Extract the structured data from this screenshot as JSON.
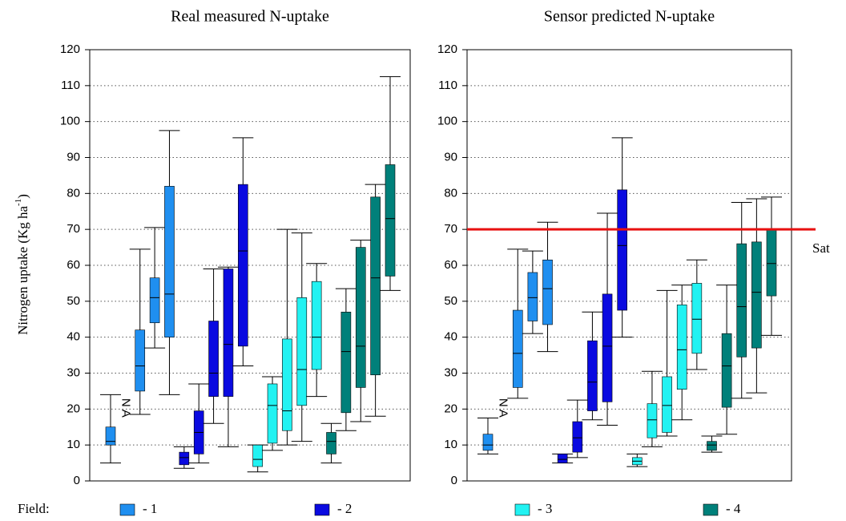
{
  "chart_data": [
    {
      "type": "box",
      "title": "Real measured N-uptake",
      "ylabel": "Nitrogen uptake (Kg ha",
      "ylabel_superscript": "-1",
      "ylabel_end": ")",
      "ylim": [
        0,
        120
      ],
      "yticks": [
        0,
        10,
        20,
        30,
        40,
        50,
        60,
        70,
        80,
        90,
        100,
        110,
        120
      ],
      "grid": true,
      "na_label": "NA",
      "series": [
        {
          "name": "- 1",
          "color": "#1f8ff0",
          "values": [
            [
              5,
              10,
              11,
              15,
              24
            ],
            null,
            [
              18.5,
              25,
              32,
              42,
              64.5
            ],
            [
              37,
              44,
              51,
              56.5,
              70.5
            ],
            [
              24,
              40,
              52,
              82,
              97.5
            ]
          ]
        },
        {
          "name": "- 2",
          "color": "#0a0ae0",
          "values": [
            [
              3.5,
              4.5,
              6.5,
              8,
              9.5
            ],
            [
              5,
              7.5,
              13.5,
              19.5,
              27
            ],
            [
              16,
              23.5,
              30,
              44.5,
              59
            ],
            [
              9.5,
              23.5,
              38,
              59,
              59.5
            ],
            [
              32,
              37.5,
              64,
              82.5,
              95.5
            ]
          ]
        },
        {
          "name": "- 3",
          "color": "#22f2f2",
          "values": [
            [
              2.5,
              4,
              6,
              10,
              10
            ],
            [
              8.5,
              10.5,
              21,
              27,
              29
            ],
            [
              10,
              14,
              19.5,
              39.5,
              70
            ],
            [
              11,
              21,
              31,
              51,
              69
            ],
            [
              23.5,
              31,
              40,
              55.5,
              60.5
            ]
          ]
        },
        {
          "name": "- 4",
          "color": "#00807a",
          "values": [
            [
              5,
              7.5,
              11,
              13.5,
              16
            ],
            [
              14,
              19,
              36,
              47,
              53.5
            ],
            [
              16.5,
              26,
              37.5,
              65,
              67
            ],
            [
              18,
              29.5,
              56.5,
              79,
              82.5
            ],
            [
              53,
              57,
              73,
              88,
              112.5
            ]
          ]
        }
      ]
    },
    {
      "type": "box",
      "title": "Sensor predicted N-uptake",
      "ylim": [
        0,
        120
      ],
      "yticks": [
        0,
        10,
        20,
        30,
        40,
        50,
        60,
        70,
        80,
        90,
        100,
        110,
        120
      ],
      "grid": true,
      "na_label": "NA",
      "reference_line": {
        "value": 70,
        "label": "Sat",
        "color": "#e81010"
      },
      "series": [
        {
          "color": "#1f8ff0",
          "values": [
            [
              7.5,
              8.5,
              10,
              13,
              17.5
            ],
            null,
            [
              23,
              26,
              35.5,
              47.5,
              64.5
            ],
            [
              41,
              44.5,
              51,
              58,
              64
            ],
            [
              36,
              43.5,
              53.5,
              61.5,
              72
            ]
          ]
        },
        {
          "color": "#0a0ae0",
          "values": [
            [
              5,
              5,
              6,
              7.5,
              7.5
            ],
            [
              6.5,
              8,
              12,
              16.5,
              22.5
            ],
            [
              17,
              19.5,
              27.5,
              39,
              47
            ],
            [
              15.5,
              22,
              37.5,
              52,
              74.5
            ],
            [
              40,
              47.5,
              65.5,
              81,
              95.5
            ]
          ]
        },
        {
          "color": "#22f2f2",
          "values": [
            [
              4,
              4.5,
              5.5,
              6.5,
              7.5
            ],
            [
              9.5,
              12,
              17,
              21.5,
              30.5
            ],
            [
              12.5,
              13.5,
              21,
              29,
              53
            ],
            [
              17,
              25.5,
              36.5,
              49,
              54.5
            ],
            [
              31,
              35.5,
              45,
              55,
              61.5
            ]
          ]
        },
        {
          "color": "#00807a",
          "values": [
            [
              8,
              8.5,
              10,
              11,
              12.5
            ],
            [
              13,
              20.5,
              32,
              41,
              54.5
            ],
            [
              23,
              34.5,
              48.5,
              66,
              77.5
            ],
            [
              24.5,
              37,
              52.5,
              66.5,
              78.5
            ],
            [
              40.5,
              51.5,
              60.5,
              70,
              79
            ]
          ]
        }
      ]
    }
  ],
  "legend_title": "Field:"
}
